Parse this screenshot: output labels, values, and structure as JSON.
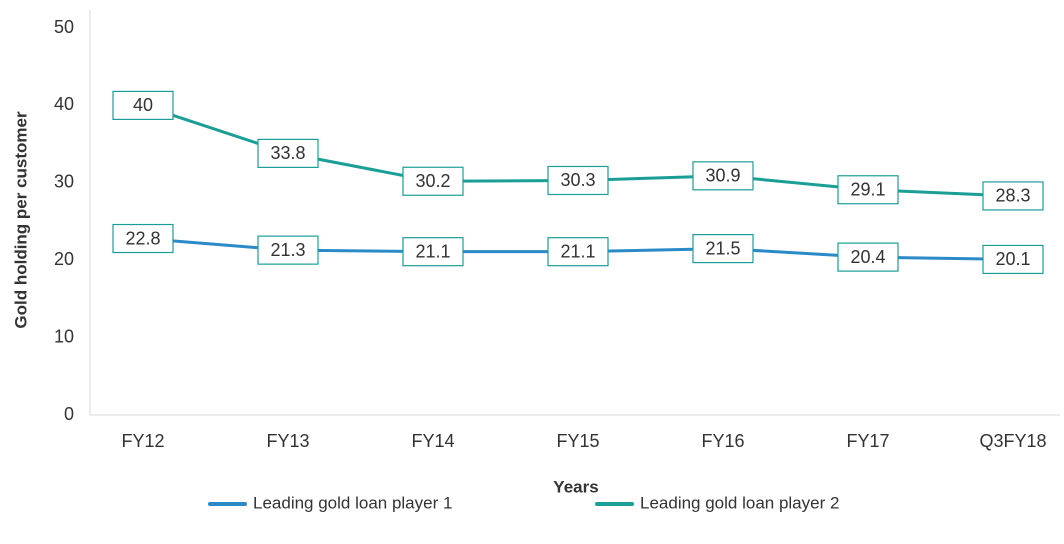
{
  "chart_data": {
    "type": "line",
    "x_label": "Years",
    "y_label": "Gold holding per customer",
    "categories": [
      "FY12",
      "FY13",
      "FY14",
      "FY15",
      "FY16",
      "FY17",
      "Q3FY18"
    ],
    "series": [
      {
        "name": "Leading gold loan player 1",
        "color": "#2a8ac8",
        "values": [
          22.8,
          21.3,
          21.1,
          21.1,
          21.5,
          20.4,
          20.1
        ]
      },
      {
        "name": "Leading gold loan player 2",
        "color": "#1a9e96",
        "values": [
          40,
          33.8,
          30.2,
          30.3,
          30.9,
          29.1,
          28.3
        ]
      }
    ],
    "label_border_color": "#1a9e96",
    "ylim": [
      0,
      50
    ],
    "yticks": [
      0,
      10,
      20,
      30,
      40,
      50
    ],
    "grid": false,
    "legend": "bottom"
  }
}
